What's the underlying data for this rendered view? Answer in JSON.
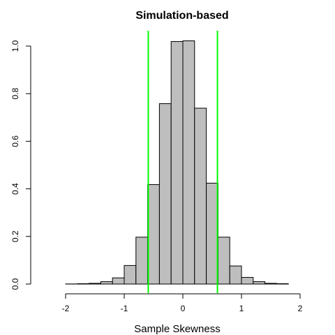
{
  "chart_data": {
    "type": "bar",
    "title": "Simulation-based",
    "xlabel": "Sample Skewness",
    "ylabel": "",
    "xlim": [
      -2.4,
      2.2
    ],
    "ylim": [
      0,
      1.02
    ],
    "xticks": [
      "-2",
      "-1",
      "0",
      "1",
      "2"
    ],
    "yticks": [
      "0.0",
      "0.2",
      "0.4",
      "0.6",
      "0.8",
      "1.0"
    ],
    "grid": false,
    "bin_width": 0.2,
    "bins": [
      {
        "start": -2.4,
        "density": 0.0
      },
      {
        "start": -2.2,
        "density": 0.0
      },
      {
        "start": -2.0,
        "density": 0.0005
      },
      {
        "start": -1.8,
        "density": 0.0015
      },
      {
        "start": -1.6,
        "density": 0.003
      },
      {
        "start": -1.4,
        "density": 0.01
      },
      {
        "start": -1.2,
        "density": 0.026
      },
      {
        "start": -1.0,
        "density": 0.078
      },
      {
        "start": -0.8,
        "density": 0.197
      },
      {
        "start": -0.6,
        "density": 0.418
      },
      {
        "start": -0.4,
        "density": 0.758
      },
      {
        "start": -0.2,
        "density": 1.019
      },
      {
        "start": 0.0,
        "density": 1.022
      },
      {
        "start": 0.2,
        "density": 0.739
      },
      {
        "start": 0.4,
        "density": 0.424
      },
      {
        "start": 0.6,
        "density": 0.197
      },
      {
        "start": 0.8,
        "density": 0.076
      },
      {
        "start": 1.0,
        "density": 0.028
      },
      {
        "start": 1.2,
        "density": 0.01
      },
      {
        "start": 1.4,
        "density": 0.003
      },
      {
        "start": 1.6,
        "density": 0.0015
      },
      {
        "start": 1.8,
        "density": 0.0
      },
      {
        "start": 2.0,
        "density": 0.0
      }
    ],
    "reference_lines": [
      -0.59,
      0.59
    ],
    "bar_color": "#bebebe",
    "reference_line_color": "#00ff00"
  }
}
